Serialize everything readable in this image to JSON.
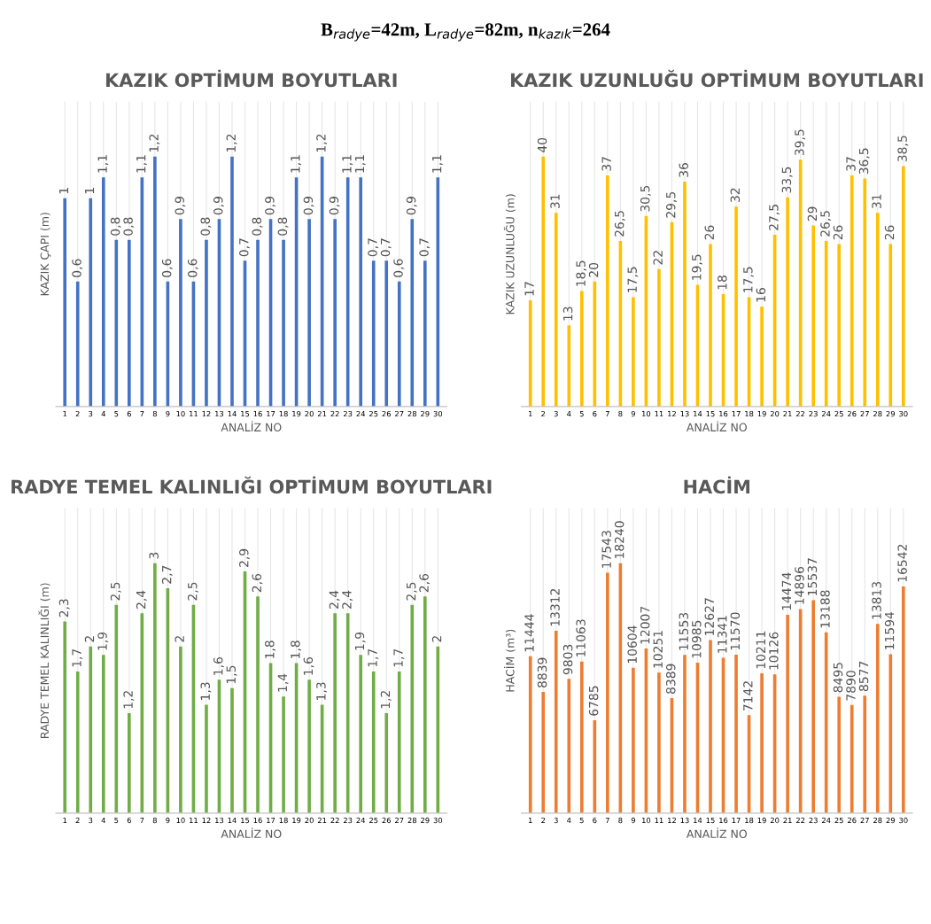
{
  "chart_data": [
    {
      "type": "bar",
      "title": "KAZIK OPTİMUM BOYUTLARI",
      "xlabel": "ANALİZ NO",
      "ylabel": "KAZIK ÇAPI (m)",
      "annotations": [
        "B$_{radye}$=42m, L$_{radye}$=82m, n$_{kazık}$=264"
      ],
      "grid": "x",
      "tick_labels": "x",
      "color": "#4472c4",
      "categories": [
        "1",
        "2",
        "3",
        "4",
        "5",
        "6",
        "7",
        "8",
        "9",
        "10",
        "11",
        "12",
        "13",
        "14",
        "15",
        "16",
        "17",
        "18",
        "19",
        "20",
        "21",
        "22",
        "23",
        "24",
        "25",
        "26",
        "27",
        "28",
        "29",
        "30"
      ],
      "values": [
        1,
        0.6,
        1,
        1.1,
        0.8,
        0.8,
        1.1,
        1.2,
        0.6,
        0.9,
        0.6,
        0.8,
        0.9,
        1.2,
        0.7,
        0.8,
        0.9,
        0.8,
        1.1,
        0.9,
        1.2,
        0.9,
        1.1,
        1.1,
        0.7,
        0.7,
        0.6,
        0.9,
        0.7,
        1.1
      ],
      "value_labels": [
        "1",
        "0,6",
        "1",
        "1,1",
        "0,8",
        "0,8",
        "1,1",
        "1,2",
        "0,6",
        "0,9",
        "0,6",
        "0,8",
        "0,9",
        "1,2",
        "0,7",
        "0,8",
        "0,9",
        "0,8",
        "1,1",
        "0,9",
        "1,2",
        "0,9",
        "1,1",
        "1,1",
        "0,7",
        "0,7",
        "0,6",
        "0,9",
        "0,7",
        "1,1"
      ]
    },
    {
      "type": "bar",
      "title": "KAZIK UZUNLUĞU OPTİMUM BOYUTLARI",
      "xlabel": "ANALİZ NO",
      "ylabel": "KAZIK UZUNLUĞU (m)",
      "grid": "x",
      "tick_labels": "x",
      "color": "#ffc000",
      "categories": [
        "1",
        "2",
        "3",
        "4",
        "5",
        "6",
        "7",
        "8",
        "9",
        "10",
        "11",
        "12",
        "13",
        "14",
        "15",
        "16",
        "17",
        "18",
        "19",
        "20",
        "21",
        "22",
        "23",
        "24",
        "25",
        "26",
        "27",
        "28",
        "29",
        "30"
      ],
      "values": [
        17,
        40,
        31,
        13,
        18.5,
        20,
        37,
        26.5,
        17.5,
        30.5,
        22,
        29.5,
        36,
        19.5,
        26,
        18,
        32,
        17.5,
        16,
        27.5,
        33.5,
        39.5,
        29,
        26.5,
        26,
        37,
        36.5,
        31,
        26,
        38.5
      ],
      "value_labels": [
        "17",
        "40",
        "31",
        "13",
        "18,5",
        "20",
        "37",
        "26,5",
        "17,5",
        "30,5",
        "22",
        "29,5",
        "36",
        "19,5",
        "26",
        "18",
        "32",
        "17,5",
        "16",
        "27,5",
        "33,5",
        "39,5",
        "29",
        "26,5",
        "26",
        "37",
        "36,5",
        "31",
        "26",
        "38,5"
      ]
    },
    {
      "type": "bar",
      "title": "RADYE TEMEL KALINLIĞI OPTİMUM BOYUTLARI",
      "xlabel": "ANALİZ NO",
      "ylabel": "RADYE TEMEL KALINLIĞI (m)",
      "grid": "x",
      "tick_labels": "x",
      "color": "#70ad47",
      "categories": [
        "1",
        "2",
        "3",
        "4",
        "5",
        "6",
        "7",
        "8",
        "9",
        "10",
        "11",
        "12",
        "13",
        "14",
        "15",
        "16",
        "17",
        "18",
        "19",
        "20",
        "21",
        "22",
        "23",
        "24",
        "25",
        "26",
        "27",
        "28",
        "29",
        "30"
      ],
      "values": [
        2.3,
        1.7,
        2,
        1.9,
        2.5,
        1.2,
        2.4,
        3,
        2.7,
        2,
        2.5,
        1.3,
        1.6,
        1.5,
        2.9,
        2.6,
        1.8,
        1.4,
        1.8,
        1.6,
        1.3,
        2.4,
        2.4,
        1.9,
        1.7,
        1.2,
        1.7,
        2.5,
        2.6,
        2
      ],
      "value_labels": [
        "2,3",
        "1,7",
        "2",
        "1,9",
        "2,5",
        "1,2",
        "2,4",
        "3",
        "2,7",
        "2",
        "2,5",
        "1,3",
        "1,6",
        "1,5",
        "2,9",
        "2,6",
        "1,8",
        "1,4",
        "1,8",
        "1,6",
        "1,3",
        "2,4",
        "2,4",
        "1,9",
        "1,7",
        "1,2",
        "1,7",
        "2,5",
        "2,6",
        "2"
      ]
    },
    {
      "type": "bar",
      "title": "HACİM",
      "xlabel": "ANALİZ NO",
      "ylabel": "HACİM (m³)",
      "grid": "x",
      "tick_labels": "x",
      "color": "#ed7d31",
      "data_labels": true,
      "categories": [
        "1",
        "2",
        "3",
        "4",
        "5",
        "6",
        "7",
        "8",
        "9",
        "10",
        "11",
        "12",
        "13",
        "14",
        "15",
        "16",
        "17",
        "18",
        "19",
        "20",
        "21",
        "22",
        "23",
        "24",
        "25",
        "26",
        "27",
        "28",
        "29",
        "30"
      ],
      "values": [
        11444,
        8839,
        13312,
        9803,
        11063,
        6785,
        17543,
        18240,
        10604,
        12007,
        10251,
        8389,
        11553,
        10985,
        12627,
        11341,
        11570,
        7142,
        10211,
        10126,
        14474,
        14896,
        15537,
        13188,
        8495,
        7890,
        8577,
        13813,
        11594,
        16542
      ]
    }
  ]
}
